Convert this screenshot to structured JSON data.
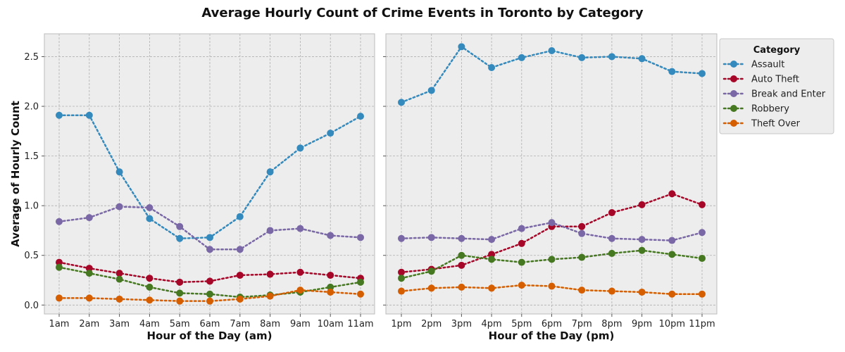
{
  "chart_data": {
    "title": "Average Hourly Count of Crime Events in Toronto by Category",
    "ylabel": "Average of Hourly Count",
    "legend": {
      "title": "Category",
      "placement": "top-right (outside right panel)"
    },
    "grid": true,
    "line_style": "dotted with circle markers",
    "colors": {
      "Assault": "#348ABD",
      "Auto Theft": "#A60628",
      "Break and Enter": "#7A68A6",
      "Robbery": "#467821",
      "Theft Over": "#D55E00"
    },
    "yticks": [
      "0.0",
      "0.5",
      "1.0",
      "1.5",
      "2.0",
      "2.5"
    ],
    "ylim": [
      -0.09,
      2.73
    ],
    "panels": [
      {
        "type": "line",
        "xlabel": "Hour of the Day (am)",
        "categories": [
          "1am",
          "2am",
          "3am",
          "4am",
          "5am",
          "6am",
          "7am",
          "8am",
          "9am",
          "10am",
          "11am"
        ],
        "series": [
          {
            "name": "Assault",
            "values": [
              1.91,
              1.91,
              1.34,
              0.87,
              0.67,
              0.68,
              0.89,
              1.34,
              1.58,
              1.73,
              1.9
            ]
          },
          {
            "name": "Auto Theft",
            "values": [
              0.43,
              0.37,
              0.32,
              0.27,
              0.23,
              0.24,
              0.3,
              0.31,
              0.33,
              0.3,
              0.27
            ]
          },
          {
            "name": "Break and Enter",
            "values": [
              0.84,
              0.88,
              0.99,
              0.98,
              0.79,
              0.56,
              0.56,
              0.75,
              0.77,
              0.7,
              0.68
            ]
          },
          {
            "name": "Robbery",
            "values": [
              0.38,
              0.32,
              0.26,
              0.18,
              0.12,
              0.11,
              0.08,
              0.1,
              0.13,
              0.18,
              0.23
            ]
          },
          {
            "name": "Theft Over",
            "values": [
              0.07,
              0.07,
              0.06,
              0.05,
              0.04,
              0.04,
              0.06,
              0.09,
              0.15,
              0.13,
              0.11
            ]
          }
        ]
      },
      {
        "type": "line",
        "xlabel": "Hour of the Day (pm)",
        "categories": [
          "1pm",
          "2pm",
          "3pm",
          "4pm",
          "5pm",
          "6pm",
          "7pm",
          "8pm",
          "9pm",
          "10pm",
          "11pm"
        ],
        "series": [
          {
            "name": "Assault",
            "values": [
              2.04,
              2.16,
              2.6,
              2.39,
              2.49,
              2.56,
              2.49,
              2.5,
              2.48,
              2.35,
              2.33
            ]
          },
          {
            "name": "Auto Theft",
            "values": [
              0.33,
              0.36,
              0.4,
              0.51,
              0.62,
              0.79,
              0.79,
              0.93,
              1.01,
              1.12,
              1.01
            ]
          },
          {
            "name": "Break and Enter",
            "values": [
              0.67,
              0.68,
              0.67,
              0.66,
              0.77,
              0.83,
              0.72,
              0.67,
              0.66,
              0.65,
              0.73
            ]
          },
          {
            "name": "Robbery",
            "values": [
              0.27,
              0.34,
              0.5,
              0.46,
              0.43,
              0.46,
              0.48,
              0.52,
              0.55,
              0.51,
              0.47
            ]
          },
          {
            "name": "Theft Over",
            "values": [
              0.14,
              0.17,
              0.18,
              0.17,
              0.2,
              0.19,
              0.15,
              0.14,
              0.13,
              0.11,
              0.11
            ]
          }
        ]
      }
    ]
  }
}
